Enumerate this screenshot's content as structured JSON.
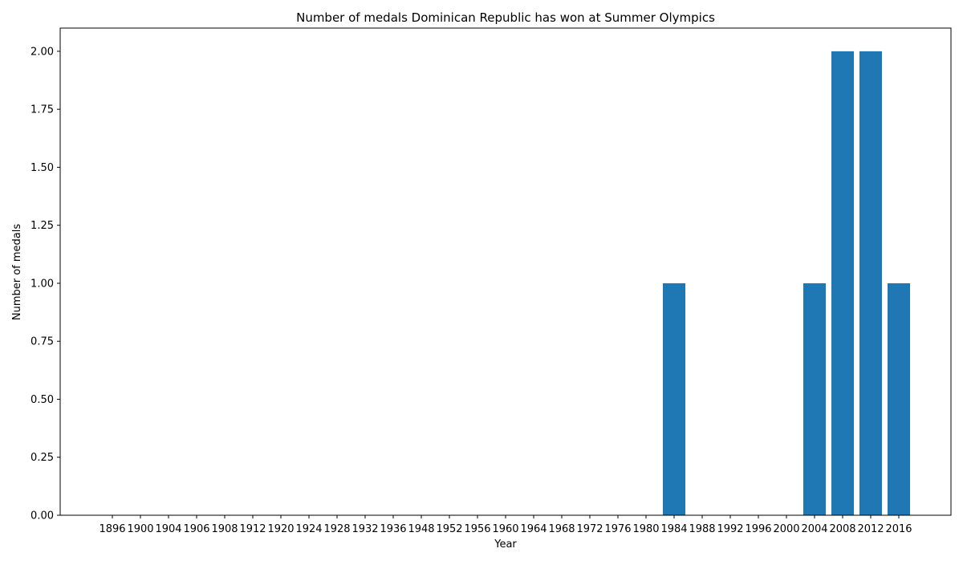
{
  "chart_data": {
    "type": "bar",
    "title": "Number of medals Dominican Republic has won at Summer Olympics",
    "xlabel": "Year",
    "ylabel": "Number of medals",
    "categories": [
      "1896",
      "1900",
      "1904",
      "1906",
      "1908",
      "1912",
      "1920",
      "1924",
      "1928",
      "1932",
      "1936",
      "1948",
      "1952",
      "1956",
      "1960",
      "1964",
      "1968",
      "1972",
      "1976",
      "1980",
      "1984",
      "1988",
      "1992",
      "1996",
      "2000",
      "2004",
      "2008",
      "2012",
      "2016"
    ],
    "values": [
      0,
      0,
      0,
      0,
      0,
      0,
      0,
      0,
      0,
      0,
      0,
      0,
      0,
      0,
      0,
      0,
      0,
      0,
      0,
      0,
      1,
      0,
      0,
      0,
      0,
      1,
      2,
      2,
      1
    ],
    "ylim": [
      0,
      2.1
    ],
    "yticks": [
      0,
      0.25,
      0.5,
      0.75,
      1.0,
      1.25,
      1.5,
      1.75,
      2.0
    ],
    "ytick_labels": [
      "0.00",
      "0.25",
      "0.50",
      "0.75",
      "1.00",
      "1.25",
      "1.50",
      "1.75",
      "2.00"
    ],
    "bar_color": "#1f77b4",
    "grid": false,
    "legend": "none"
  }
}
